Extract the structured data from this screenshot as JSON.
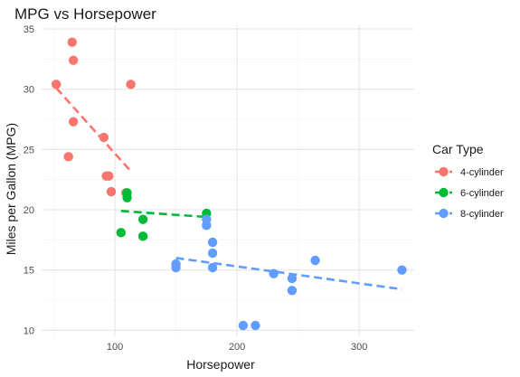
{
  "chart_data": {
    "type": "scatter",
    "title": "MPG vs Horsepower",
    "xlabel": "Horsepower",
    "ylabel": "Miles per Gallon (MPG)",
    "xlim": [
      40,
      345
    ],
    "ylim": [
      9.5,
      35.3
    ],
    "x_ticks": [
      100,
      200,
      300
    ],
    "x_minor_ticks": [
      50,
      150,
      250
    ],
    "y_ticks": [
      10,
      15,
      20,
      25,
      30,
      35
    ],
    "y_minor_ticks": [
      12.5,
      17.5,
      22.5,
      27.5,
      32.5
    ],
    "grid": true,
    "legend": {
      "title": "Car Type",
      "position": "right"
    },
    "series": [
      {
        "name": "4-cylinder",
        "color": "#F8766D",
        "points": [
          [
            52,
            30.4
          ],
          [
            65,
            33.9
          ],
          [
            66,
            32.4
          ],
          [
            66,
            27.3
          ],
          [
            62,
            24.4
          ],
          [
            91,
            26.0
          ],
          [
            93,
            22.8
          ],
          [
            95,
            22.8
          ],
          [
            97,
            21.5
          ],
          [
            109,
            21.4
          ],
          [
            113,
            30.4
          ]
        ],
        "trend": [
          [
            52,
            30.1
          ],
          [
            113,
            23.2
          ]
        ]
      },
      {
        "name": "6-cylinder",
        "color": "#00BA38",
        "points": [
          [
            110,
            21.0
          ],
          [
            110,
            21.4
          ],
          [
            105,
            18.1
          ],
          [
            123,
            19.2
          ],
          [
            123,
            17.8
          ],
          [
            175,
            19.7
          ]
        ],
        "trend": [
          [
            105,
            19.9
          ],
          [
            175,
            19.4
          ]
        ]
      },
      {
        "name": "8-cylinder",
        "color": "#619CFF",
        "points": [
          [
            150,
            15.5
          ],
          [
            150,
            15.2
          ],
          [
            175,
            18.7
          ],
          [
            175,
            19.2
          ],
          [
            180,
            17.3
          ],
          [
            180,
            16.4
          ],
          [
            180,
            15.2
          ],
          [
            205,
            10.4
          ],
          [
            215,
            10.4
          ],
          [
            230,
            14.7
          ],
          [
            245,
            14.3
          ],
          [
            245,
            13.3
          ],
          [
            264,
            15.8
          ],
          [
            335,
            15.0
          ]
        ],
        "trend": [
          [
            150,
            16.0
          ],
          [
            335,
            13.4
          ]
        ]
      }
    ]
  }
}
